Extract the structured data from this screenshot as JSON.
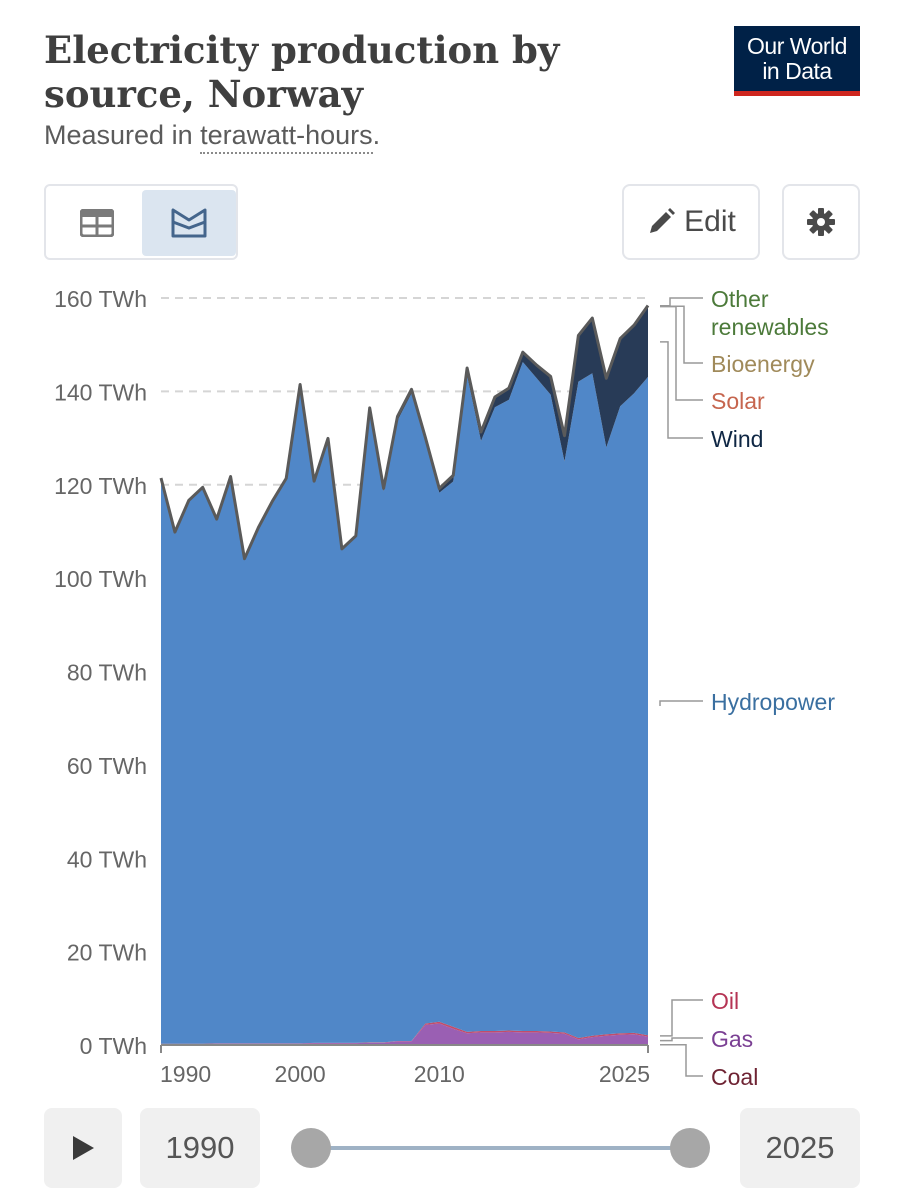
{
  "header": {
    "title": "Electricity production by source, Norway",
    "subtitle_prefix": "Measured in ",
    "subtitle_unit": "terawatt-hours",
    "subtitle_suffix": ".",
    "logo_line1": "Our World",
    "logo_line2": "in Data"
  },
  "controls": {
    "table_icon": "table-icon",
    "chart_icon": "stacked-area-chart-icon",
    "edit_label": "Edit",
    "edit_icon": "pencil-icon",
    "settings_icon": "gear-icon"
  },
  "timeline": {
    "play_icon": "play-icon",
    "start_label": "1990",
    "end_label": "2025"
  },
  "chart_data": {
    "type": "area",
    "stacked": true,
    "title": "Electricity production by source, Norway",
    "subtitle": "Measured in terawatt-hours.",
    "yunit": " TWh",
    "ylim": [
      0,
      160
    ],
    "yticks": [
      0,
      20,
      40,
      60,
      80,
      100,
      120,
      140,
      160
    ],
    "xlim": [
      1990,
      2025
    ],
    "xticks": [
      1990,
      2000,
      2010,
      2025
    ],
    "grid": "horizontal dashed",
    "legend": "right, inline labels",
    "colors": {
      "hydro": "#5087c8",
      "wind": "#283b57",
      "gas": "#9a5fb3",
      "oil": "#c24d6a",
      "coal": "#7a2a37",
      "outline": "#5a5a5a"
    },
    "x": [
      1990,
      1991,
      1992,
      1993,
      1994,
      1995,
      1996,
      1997,
      1998,
      1999,
      2000,
      2001,
      2002,
      2003,
      2004,
      2005,
      2006,
      2007,
      2008,
      2009,
      2010,
      2011,
      2012,
      2013,
      2014,
      2015,
      2016,
      2017,
      2018,
      2019,
      2020,
      2021,
      2022,
      2023,
      2024,
      2025
    ],
    "series": [
      {
        "name": "Coal",
        "key": "coal",
        "values": [
          0.1,
          0.1,
          0.1,
          0.1,
          0.1,
          0.1,
          0.1,
          0.1,
          0.1,
          0.1,
          0.1,
          0.1,
          0.1,
          0.1,
          0.1,
          0.1,
          0.1,
          0.1,
          0.1,
          0.1,
          0.1,
          0.1,
          0.1,
          0.1,
          0.1,
          0.1,
          0.1,
          0.1,
          0.1,
          0.1,
          0.1,
          0.1,
          0.1,
          0.1,
          0.1,
          0.1
        ]
      },
      {
        "name": "Gas",
        "key": "gas",
        "values": [
          0.1,
          0.1,
          0.1,
          0.1,
          0.2,
          0.2,
          0.2,
          0.2,
          0.2,
          0.2,
          0.2,
          0.3,
          0.3,
          0.3,
          0.3,
          0.4,
          0.4,
          0.7,
          0.7,
          4.2,
          4.5,
          3.4,
          2.4,
          2.6,
          2.6,
          2.7,
          2.6,
          2.6,
          2.5,
          2.3,
          1.1,
          1.6,
          1.9,
          2.1,
          2.2,
          1.7
        ]
      },
      {
        "name": "Oil",
        "key": "oil",
        "values": [
          0.05,
          0.05,
          0.05,
          0.05,
          0.05,
          0.05,
          0.05,
          0.05,
          0.05,
          0.05,
          0.05,
          0.05,
          0.05,
          0.05,
          0.05,
          0.05,
          0.05,
          0.05,
          0.05,
          0.3,
          0.4,
          0.4,
          0.3,
          0.3,
          0.3,
          0.3,
          0.3,
          0.3,
          0.3,
          0.3,
          0.3,
          0.3,
          0.3,
          0.3,
          0.3,
          0.3
        ]
      },
      {
        "name": "Hydropower",
        "key": "hydro",
        "values": [
          121.2,
          109.6,
          116.4,
          119.2,
          112.3,
          121.4,
          103.8,
          110.5,
          116.1,
          121.0,
          141.1,
          120.3,
          129.4,
          105.6,
          108.3,
          135.4,
          118.0,
          132.9,
          138.7,
          124.5,
          113.3,
          116.8,
          140.6,
          126.4,
          133.6,
          135.1,
          143.3,
          139.8,
          136.4,
          122.3,
          140.6,
          141.9,
          125.7,
          134.3,
          137.0,
          141.0
        ]
      },
      {
        "name": "Wind",
        "key": "wind",
        "values": [
          0,
          0,
          0,
          0,
          0,
          0,
          0,
          0,
          0,
          0,
          0.03,
          0.03,
          0.08,
          0.2,
          0.3,
          0.5,
          0.7,
          0.9,
          0.9,
          1.0,
          0.9,
          1.3,
          1.6,
          1.9,
          2.2,
          2.5,
          2.1,
          2.8,
          3.9,
          5.5,
          9.9,
          11.8,
          14.8,
          14.5,
          14.6,
          15.0
        ]
      },
      {
        "name": "Solar",
        "key": "solar",
        "values": [
          0,
          0,
          0,
          0,
          0,
          0,
          0,
          0,
          0,
          0,
          0,
          0,
          0,
          0,
          0,
          0,
          0,
          0,
          0,
          0,
          0,
          0,
          0,
          0,
          0,
          0,
          0,
          0,
          0,
          0,
          0,
          0,
          0,
          0,
          0,
          0.1
        ]
      },
      {
        "name": "Bioenergy",
        "key": "bio",
        "values": [
          0,
          0,
          0,
          0,
          0,
          0,
          0,
          0,
          0,
          0,
          0,
          0,
          0,
          0,
          0,
          0,
          0,
          0,
          0,
          0,
          0,
          0,
          0,
          0,
          0,
          0,
          0,
          0,
          0,
          0,
          0,
          0,
          0,
          0,
          0,
          0.1
        ]
      },
      {
        "name": "Other renewables",
        "key": "other",
        "values": [
          0,
          0,
          0,
          0,
          0,
          0,
          0,
          0,
          0,
          0,
          0,
          0,
          0,
          0,
          0,
          0,
          0,
          0,
          0,
          0,
          0,
          0,
          0,
          0,
          0,
          0,
          0,
          0,
          0,
          0,
          0,
          0,
          0,
          0,
          0,
          0.1
        ]
      }
    ],
    "legend_entries": [
      {
        "key": "other",
        "label_lines": [
          "Other",
          "renewables"
        ],
        "color": "#4c7a3a"
      },
      {
        "key": "bio",
        "label_lines": [
          "Bioenergy"
        ],
        "color": "#a08a5a"
      },
      {
        "key": "solar",
        "label_lines": [
          "Solar"
        ],
        "color": "#c6654e"
      },
      {
        "key": "wind",
        "label_lines": [
          "Wind"
        ],
        "color": "#0f2744"
      },
      {
        "key": "hydro",
        "label_lines": [
          "Hydropower"
        ],
        "color": "#3a6fa0"
      },
      {
        "key": "oil",
        "label_lines": [
          "Oil"
        ],
        "color": "#b53454"
      },
      {
        "key": "gas",
        "label_lines": [
          "Gas"
        ],
        "color": "#7a3f93"
      },
      {
        "key": "coal",
        "label_lines": [
          "Coal"
        ],
        "color": "#6e2333"
      }
    ]
  }
}
